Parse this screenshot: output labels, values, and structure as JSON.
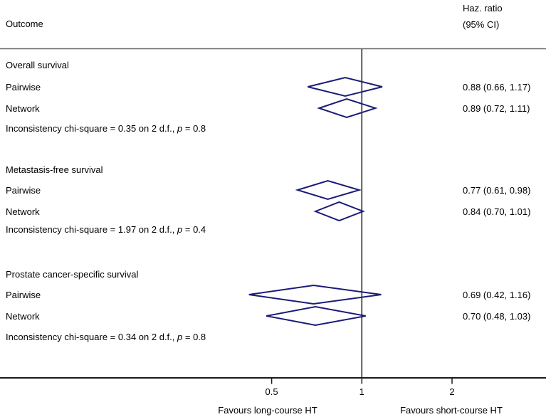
{
  "header": {
    "outcome": "Outcome",
    "hr_line1": "Haz. ratio",
    "hr_line2": "(95% CI)"
  },
  "colors": {
    "diamond": "#1b1b78",
    "axis": "#1a1a1a",
    "rule": "#666666"
  },
  "chart_data": {
    "type": "forest",
    "x_scale": "log",
    "reference_line": 1,
    "xlim": [
      0.3,
      3.2
    ],
    "axis": {
      "ticks": [
        {
          "value": 0.5,
          "label": "0.5"
        },
        {
          "value": 1,
          "label": "1"
        },
        {
          "value": 2,
          "label": "2"
        }
      ]
    },
    "footers": {
      "left": "Favours long-course HT",
      "right": "Favours short-course HT"
    },
    "groups": [
      {
        "name": "Overall survival",
        "rows": [
          {
            "label": "Pairwise",
            "est": 0.88,
            "lcl": 0.66,
            "ucl": 1.17,
            "hr_text": "0.88 (0.66, 1.17)"
          },
          {
            "label": "Network",
            "est": 0.89,
            "lcl": 0.72,
            "ucl": 1.11,
            "hr_text": "0.89 (0.72, 1.11)"
          }
        ],
        "inconsistency": {
          "prefix": "Inconsistency chi-square = 0.35 on 2 d.f., ",
          "p": "p",
          "suffix": " = 0.8"
        }
      },
      {
        "name": "Metastasis-free survival",
        "rows": [
          {
            "label": "Pairwise",
            "est": 0.77,
            "lcl": 0.61,
            "ucl": 0.98,
            "hr_text": "0.77 (0.61, 0.98)"
          },
          {
            "label": "Network",
            "est": 0.84,
            "lcl": 0.7,
            "ucl": 1.01,
            "hr_text": "0.84 (0.70, 1.01)"
          }
        ],
        "inconsistency": {
          "prefix": "Inconsistency chi-square = 1.97 on 2 d.f., ",
          "p": "p",
          "suffix": " = 0.4"
        }
      },
      {
        "name": "Prostate cancer-specific survival",
        "rows": [
          {
            "label": "Pairwise",
            "est": 0.69,
            "lcl": 0.42,
            "ucl": 1.16,
            "hr_text": "0.69 (0.42, 1.16)"
          },
          {
            "label": "Network",
            "est": 0.7,
            "lcl": 0.48,
            "ucl": 1.03,
            "hr_text": "0.70 (0.48, 1.03)"
          }
        ],
        "inconsistency": {
          "prefix": "Inconsistency chi-square = 0.34 on 2 d.f., ",
          "p": "p",
          "suffix": " = 0.8"
        }
      }
    ]
  }
}
